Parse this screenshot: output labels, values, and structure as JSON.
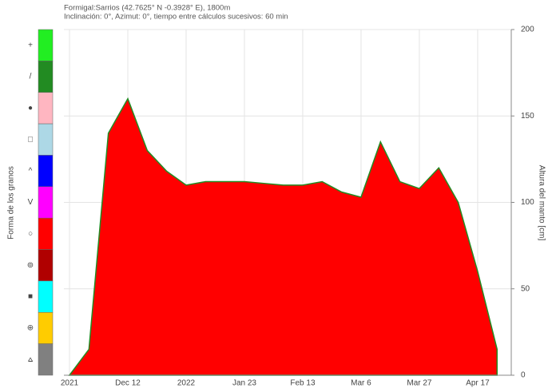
{
  "chart_data": {
    "type": "area",
    "title": "Formigal:Sarrios (42.7625° N -0.3928° E), 1800m",
    "subtitle": "Inclinación: 0°, Azimut: 0°, tiempo entre cálculos sucesivos: 60 min",
    "y_label": "Altura del manto [cm]",
    "categories": [
      "2021",
      null,
      null,
      "Dec 12",
      null,
      null,
      "2022",
      null,
      null,
      "Jan 23",
      null,
      null,
      "Feb 13",
      null,
      null,
      "Mar 6",
      null,
      null,
      "Mar 27",
      null,
      null,
      "Apr 17",
      null
    ],
    "values": [
      0,
      15,
      140,
      160,
      130,
      118,
      110,
      112,
      112,
      112,
      111,
      110,
      110,
      112,
      106,
      103,
      135,
      112,
      108,
      120,
      100,
      60,
      15
    ],
    "color": "#ff0000",
    "ylim": [
      0,
      200
    ],
    "yticks": [
      0,
      50,
      100,
      150,
      200
    ],
    "grid": true,
    "legend": {
      "title": "Forma de los granos",
      "items": [
        {
          "label": "+",
          "color": "#22ee22"
        },
        {
          "label": "/",
          "color": "#228b22"
        },
        {
          "label": "●",
          "color": "#ffb6c1"
        },
        {
          "label": "□",
          "color": "#add8e6"
        },
        {
          "label": "^",
          "color": "#0000ff"
        },
        {
          "label": "V",
          "color": "#ff00ff"
        },
        {
          "label": "○",
          "color": "#ff0000"
        },
        {
          "label": "⊚",
          "color": "#b00000"
        },
        {
          "label": "■",
          "color": "#00ffff"
        },
        {
          "label": "⊕",
          "color": "#ffcc00"
        },
        {
          "label": "⩟",
          "color": "#808080"
        }
      ]
    }
  }
}
